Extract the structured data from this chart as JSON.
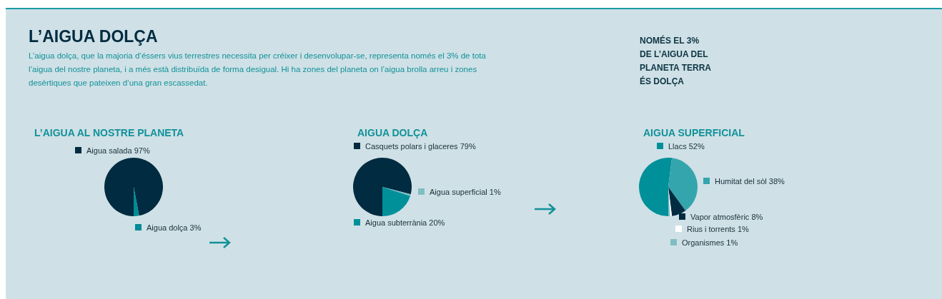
{
  "chart_data": [
    {
      "type": "other",
      "title": "L’AIGUA DOLÇA",
      "subtitle": "L’aigua dolça, que la majoria d’éssers vius terrestres necessita per créixer i desenvolupar-se, representa només el 3% de tota l’aigua del nostre planeta, i a més està distribuïda de forma desigual. Hi ha zones del planeta on l’aigua brolla arreu i zones desèrtiques que pateixen d’una gran escassedat.",
      "annotations": [
        "NOMÉS EL 3%\nDE L’AIGUA DEL\nPLANETA TERRA\nÉS DOLÇA"
      ]
    },
    {
      "type": "pie",
      "title": "L’AIGUA AL NOSTRE PLANETA",
      "categories": [
        "Aigua salada",
        "Aigua dolça"
      ],
      "values": [
        97,
        3
      ],
      "value_labels": [
        "97%",
        "3%"
      ],
      "legend": "right",
      "colors": [
        "#002b40",
        "#008b96"
      ]
    },
    {
      "type": "pie",
      "title": "AIGUA DOLÇA",
      "categories": [
        "Casquets polars i glaceres",
        "Aigua superficial",
        "Aigua subterrània"
      ],
      "values": [
        79,
        1,
        20
      ],
      "value_labels": [
        "79%",
        "1%",
        "20%"
      ],
      "legend": "right",
      "colors": [
        "#002b40",
        "#7fbfc4",
        "#00909a"
      ]
    },
    {
      "type": "pie",
      "title": "AIGUA SUPERFICIAL",
      "categories": [
        "Llacs",
        "Humitat del sòl",
        "Vapor atmosfèric",
        "Rius i torrents",
        "Organismes"
      ],
      "values": [
        52,
        38,
        8,
        1,
        1
      ],
      "value_labels": [
        "52%",
        "38%",
        "8%",
        "1%",
        "1%"
      ],
      "legend": "right",
      "colors": [
        "#00909a",
        "#35a5ad",
        "#002b40",
        "#ffffff",
        "#7fbfc4"
      ]
    }
  ]
}
